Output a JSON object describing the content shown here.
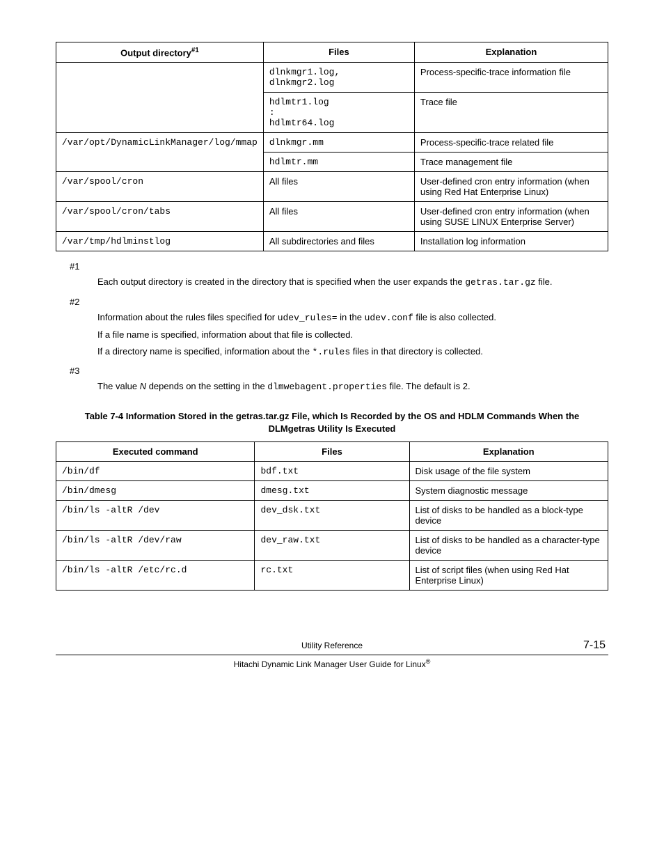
{
  "table1": {
    "headers": [
      "Output directory",
      "Files",
      "Explanation"
    ],
    "header_sup": "#1",
    "rows": [
      {
        "dir": "",
        "dir_class": "no-top-border no-bottom-border",
        "files_mono": "dlnkmgr1.log, dlnkmgr2.log",
        "expl": "Process-specific-trace information file"
      },
      {
        "dir": "",
        "dir_class": "no-top-border",
        "files_mono": "hdlmtr1.log\n:\nhdlmtr64.log",
        "expl": "Trace file"
      },
      {
        "dir": "/var/opt/DynamicLinkManager/log/mmap",
        "dir_rowspan": 2,
        "files_mono": "dlnkmgr.mm",
        "expl": "Process-specific-trace related file"
      },
      {
        "files_mono": "hdlmtr.mm",
        "expl": "Trace management file"
      },
      {
        "dir": "/var/spool/cron",
        "files_plain": "All files",
        "expl": "User-defined cron entry information (when using Red Hat Enterprise Linux)"
      },
      {
        "dir": "/var/spool/cron/tabs",
        "files_plain": "All files",
        "expl": "User-defined cron entry information (when using SUSE LINUX Enterprise Server)"
      },
      {
        "dir": "/var/tmp/hdlminstlog",
        "files_plain": "All subdirectories and files",
        "expl": "Installation log information"
      }
    ]
  },
  "notes": {
    "n1": {
      "key": "#1",
      "p1a": "Each output directory is created in the directory that is specified when the user expands the ",
      "p1m": "getras.tar.gz",
      "p1b": " file."
    },
    "n2": {
      "key": "#2",
      "p1a": "Information about the rules files specified for ",
      "p1m1": "udev_rules=",
      "p1b": " in the ",
      "p1m2": "udev.conf",
      "p1c": " file is also collected.",
      "p2": "If a file name is specified, information about that file is collected.",
      "p3a": "If a directory name is specified, information about the ",
      "p3m": "*.rules",
      "p3b": " files in that directory is collected."
    },
    "n3": {
      "key": "#3",
      "p1a": "The value ",
      "p1i": "N",
      "p1b": " depends on the setting in the ",
      "p1m": "dlmwebagent.properties",
      "p1c": " file. The default is 2."
    }
  },
  "caption2": "Table 7-4 Information Stored in the getras.tar.gz File, which Is Recorded by the OS and HDLM Commands When the DLMgetras Utility Is Executed",
  "table2": {
    "headers": [
      "Executed command",
      "Files",
      "Explanation"
    ],
    "rows": [
      {
        "cmd": "/bin/df",
        "file": "bdf.txt",
        "expl": "Disk usage of the file system"
      },
      {
        "cmd": "/bin/dmesg",
        "file": "dmesg.txt",
        "expl": "System diagnostic message"
      },
      {
        "cmd": "/bin/ls -altR /dev",
        "file": "dev_dsk.txt",
        "expl": "List of disks to be handled as a block-type device"
      },
      {
        "cmd": "/bin/ls -altR /dev/raw",
        "file": "dev_raw.txt",
        "expl": "List of disks to be handled as a character-type device"
      },
      {
        "cmd": "/bin/ls -altR /etc/rc.d",
        "file": "rc.txt",
        "expl": "List of script files (when using Red Hat Enterprise Linux)"
      }
    ]
  },
  "footer": {
    "center": "Utility Reference",
    "page": "7-15",
    "sub": "Hitachi Dynamic Link Manager User Guide for Linux"
  }
}
